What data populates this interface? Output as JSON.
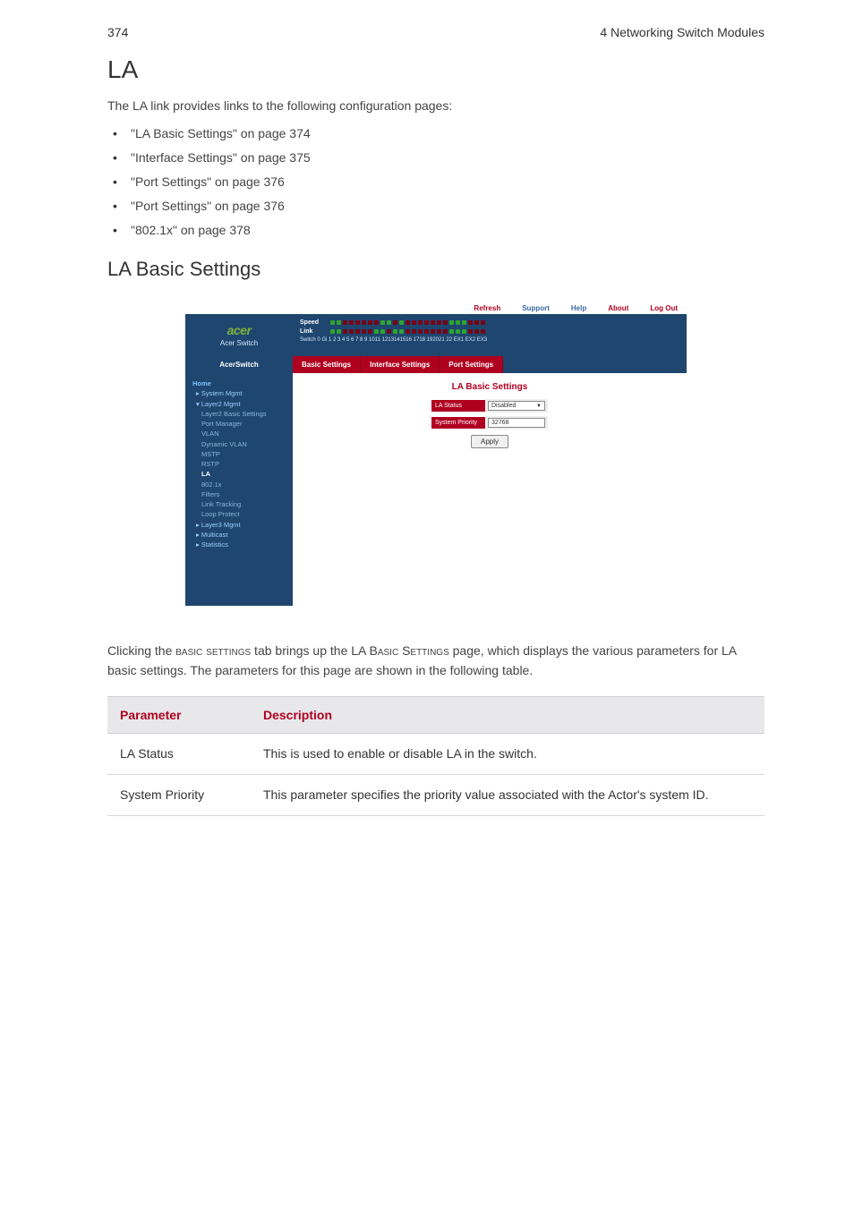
{
  "header": {
    "page_num": "374",
    "chapter": "4 Networking Switch Modules"
  },
  "title": "LA",
  "intro": "The LA link provides links to the following configuration pages:",
  "bullets": [
    "\"LA Basic Settings\" on page 374",
    "\"Interface Settings\" on page 375",
    "\"Port Settings\" on page 376",
    "\"Port Settings\" on page 376",
    "\"802.1x\" on page 378"
  ],
  "subtitle": "LA Basic Settings",
  "screenshot": {
    "topbar": {
      "items": [
        "Refresh",
        "Support",
        "Help",
        "About",
        "Log Out"
      ]
    },
    "brand": {
      "logo": "acer",
      "sub": "Acer Switch"
    },
    "ports": {
      "row1_label": "Speed",
      "row2_label": "Link",
      "numline": "Switch 0 Gi 1 2 3 4 5 6 7 8 9 1011 1213141516 1718 192021 22 EX1 EX2 EX3"
    },
    "navtitle": "AcerSwitch",
    "tabs": [
      "Basic Settings",
      "Interface Settings",
      "Port Settings"
    ],
    "sidebar": {
      "items": [
        {
          "cls": "lvl0",
          "t": "Home"
        },
        {
          "cls": "lvl1",
          "t": "▸ System Mgmt"
        },
        {
          "cls": "lvl1",
          "t": "▾ Layer2 Mgmt"
        },
        {
          "cls": "lvl2",
          "t": "Layer2 Basic Settings"
        },
        {
          "cls": "lvl2",
          "t": "Port Manager"
        },
        {
          "cls": "lvl2",
          "t": "VLAN"
        },
        {
          "cls": "lvl2",
          "t": "Dynamic VLAN"
        },
        {
          "cls": "lvl2",
          "t": "MSTP"
        },
        {
          "cls": "lvl2",
          "t": "RSTP"
        },
        {
          "cls": "lvl2 hl",
          "t": "LA"
        },
        {
          "cls": "lvl2",
          "t": "802.1x"
        },
        {
          "cls": "lvl2",
          "t": "Filters"
        },
        {
          "cls": "lvl2",
          "t": "Link Tracking"
        },
        {
          "cls": "lvl2",
          "t": "Loop Protect"
        },
        {
          "cls": "lvl1",
          "t": "▸ Layer3 Mgmt"
        },
        {
          "cls": "lvl1",
          "t": "▸ Multicast"
        },
        {
          "cls": "lvl1",
          "t": "▸ Statistics"
        }
      ]
    },
    "panel_title": "LA Basic Settings",
    "form": {
      "status_label": "LA Status",
      "status_value": "Disabled",
      "priority_label": "System Priority",
      "priority_value": "32768",
      "apply": "Apply"
    }
  },
  "body_para": {
    "p1a": "Clicking the ",
    "sc1": "basic settings",
    "p1b": " tab brings up the LA ",
    "sc2": "Basic Settings",
    "p1c": " page, which displays the various parameters for LA basic settings. The parameters for this page are shown in the following table."
  },
  "table": {
    "headers": [
      "Parameter",
      "Description"
    ],
    "rows": [
      [
        "LA Status",
        "This is used to enable or disable LA in the switch."
      ],
      [
        "System Priority",
        "This parameter specifies the priority value associated with the Actor's system ID."
      ]
    ]
  },
  "colors": {
    "accent_red": "#b00020",
    "nav_blue": "#1e466f",
    "acer_green": "#7fb33a"
  }
}
